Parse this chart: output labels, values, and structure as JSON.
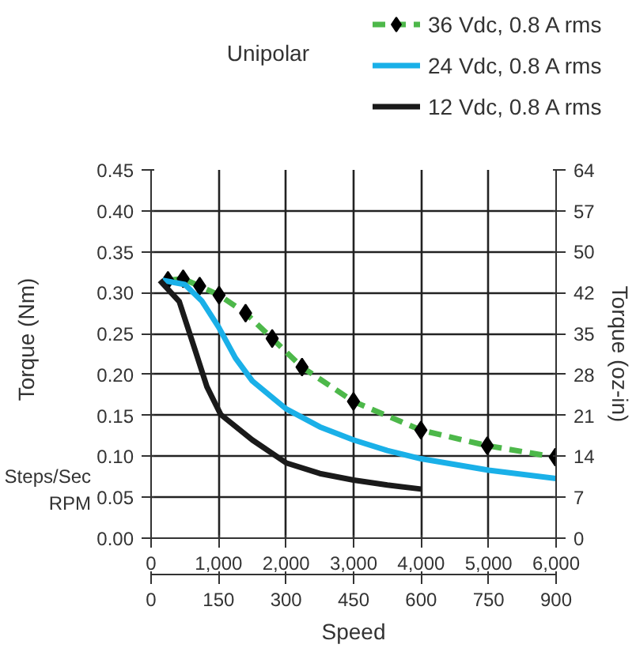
{
  "chart_data": {
    "type": "line",
    "subtitle": "Unipolar",
    "xlabel": "Speed",
    "ylabel": "Torque (Nm)",
    "y2label": "Torque (oz-in)",
    "annotations": [
      "Steps/Sec",
      "RPM"
    ],
    "xlim": [
      0,
      6000
    ],
    "xticks": [
      {
        "value": 0,
        "label": "0"
      },
      {
        "value": 1000,
        "label": "1,000"
      },
      {
        "value": 2000,
        "label": "2,000"
      },
      {
        "value": 3000,
        "label": "3,000"
      },
      {
        "value": 4000,
        "label": "4,000"
      },
      {
        "value": 5000,
        "label": "5,000"
      },
      {
        "value": 6000,
        "label": "6,000"
      }
    ],
    "x2lim": [
      0,
      900
    ],
    "x2ticks": [
      0,
      150,
      300,
      450,
      600,
      750,
      900
    ],
    "ylim": [
      0,
      0.45
    ],
    "yticks": [
      {
        "value": 0,
        "label": "0.00"
      },
      {
        "value": 0.05,
        "label": "0.05"
      },
      {
        "value": 0.1,
        "label": "0.10"
      },
      {
        "value": 0.15,
        "label": "0.15"
      },
      {
        "value": 0.2,
        "label": "0.20"
      },
      {
        "value": 0.25,
        "label": "0.25"
      },
      {
        "value": 0.3,
        "label": "0.30"
      },
      {
        "value": 0.35,
        "label": "0.35"
      },
      {
        "value": 0.4,
        "label": "0.40"
      },
      {
        "value": 0.45,
        "label": "0.45"
      }
    ],
    "y2lim": [
      0,
      63.7
    ],
    "y2ticks": [
      {
        "value": 0,
        "label": "0"
      },
      {
        "value": 7.08,
        "label": "7"
      },
      {
        "value": 14.16,
        "label": "14"
      },
      {
        "value": 21.24,
        "label": "21"
      },
      {
        "value": 28.32,
        "label": "28"
      },
      {
        "value": 35.4,
        "label": "35"
      },
      {
        "value": 42.48,
        "label": "42"
      },
      {
        "value": 49.56,
        "label": "50"
      },
      {
        "value": 56.64,
        "label": "57"
      },
      {
        "value": 63.7,
        "label": "64"
      }
    ],
    "grid": true,
    "legend": "top right",
    "series": [
      {
        "name": "36 Vdc, 0.8 A rms",
        "color": "#4db84a",
        "marker": "diamond",
        "line_style": "dashed",
        "x": [
          250,
          475,
          720,
          1007,
          1400,
          1794,
          2236,
          2998,
          3997,
          4980,
          5987
        ],
        "values": [
          0.315,
          0.317,
          0.308,
          0.297,
          0.275,
          0.244,
          0.209,
          0.167,
          0.132,
          0.113,
          0.099
        ]
      },
      {
        "name": "24 Vdc, 0.8 A rms",
        "color": "#1ab0e8",
        "marker": "none",
        "line_style": "solid",
        "x": [
          170,
          500,
          750,
          1000,
          1250,
          1500,
          2000,
          2500,
          3000,
          3500,
          4000,
          5000,
          6000
        ],
        "values": [
          0.315,
          0.31,
          0.29,
          0.258,
          0.22,
          0.192,
          0.158,
          0.136,
          0.12,
          0.107,
          0.097,
          0.083,
          0.073
        ]
      },
      {
        "name": "12 Vdc, 0.8 A rms",
        "color": "#1a1a1a",
        "marker": "none",
        "line_style": "solid",
        "x": [
          130,
          418,
          663,
          827,
          1032,
          1500,
          2000,
          2500,
          3000,
          3500,
          4000
        ],
        "values": [
          0.315,
          0.289,
          0.227,
          0.185,
          0.151,
          0.12,
          0.092,
          0.079,
          0.071,
          0.065,
          0.06
        ]
      }
    ]
  }
}
